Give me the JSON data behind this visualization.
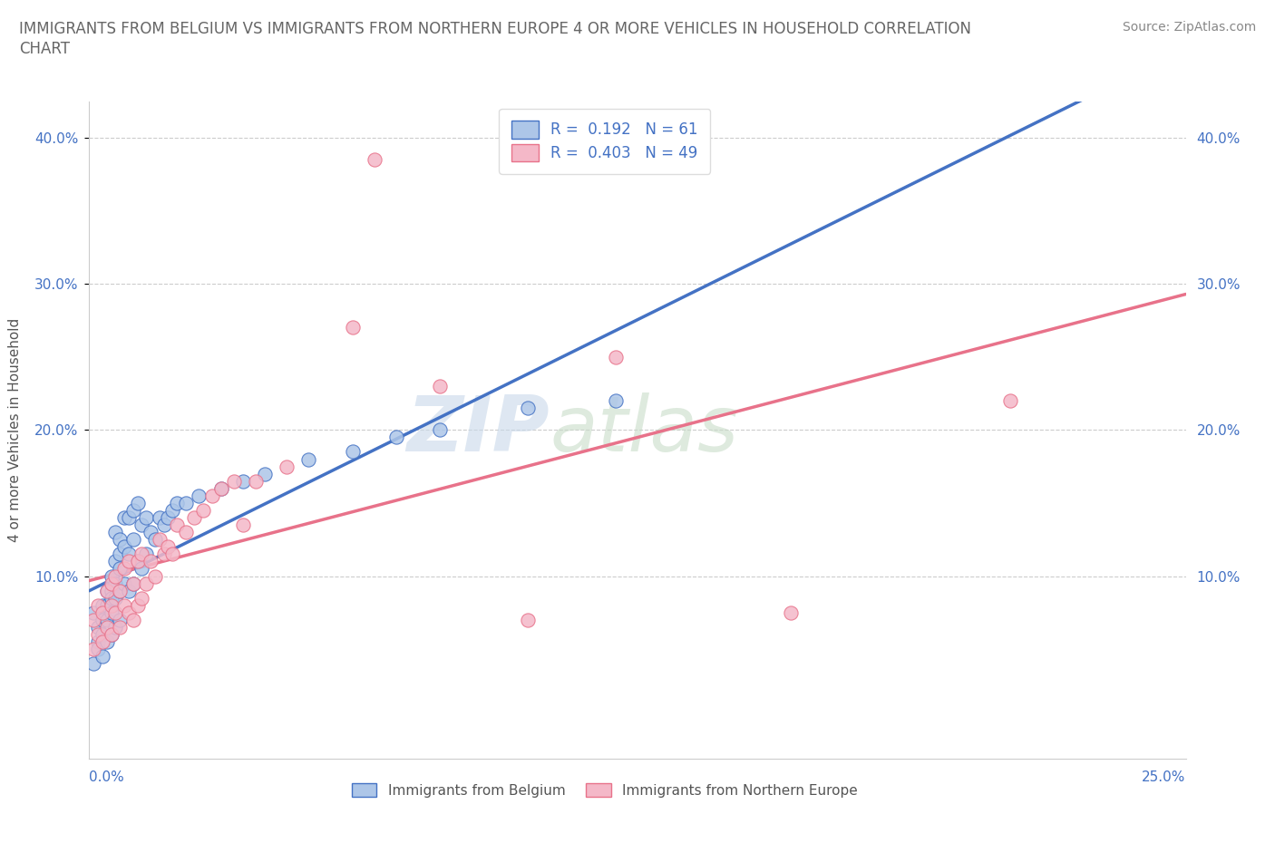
{
  "title_line1": "IMMIGRANTS FROM BELGIUM VS IMMIGRANTS FROM NORTHERN EUROPE 4 OR MORE VEHICLES IN HOUSEHOLD CORRELATION",
  "title_line2": "CHART",
  "source_text": "Source: ZipAtlas.com",
  "xlabel_bottom_left": "0.0%",
  "xlabel_bottom_right": "25.0%",
  "ylabel": "4 or more Vehicles in Household",
  "ytick_labels": [
    "10.0%",
    "20.0%",
    "30.0%",
    "40.0%"
  ],
  "ytick_positions": [
    0.1,
    0.2,
    0.3,
    0.4
  ],
  "xlim": [
    0.0,
    0.25
  ],
  "ylim": [
    -0.025,
    0.425
  ],
  "watermark_zip": "ZIP",
  "watermark_atlas": "atlas",
  "belgium_R": 0.192,
  "belgium_N": 61,
  "northern_europe_R": 0.403,
  "northern_europe_N": 49,
  "legend_label_belgium": "Immigrants from Belgium",
  "legend_label_northern": "Immigrants from Northern Europe",
  "belgium_color": "#adc6e8",
  "northern_europe_color": "#f4b8c8",
  "belgium_line_color": "#4472c4",
  "northern_europe_line_color": "#e8728a",
  "belgium_x": [
    0.001,
    0.001,
    0.002,
    0.002,
    0.002,
    0.003,
    0.003,
    0.003,
    0.003,
    0.004,
    0.004,
    0.004,
    0.004,
    0.005,
    0.005,
    0.005,
    0.005,
    0.005,
    0.006,
    0.006,
    0.006,
    0.006,
    0.006,
    0.007,
    0.007,
    0.007,
    0.007,
    0.007,
    0.008,
    0.008,
    0.008,
    0.009,
    0.009,
    0.009,
    0.01,
    0.01,
    0.01,
    0.011,
    0.011,
    0.012,
    0.012,
    0.013,
    0.013,
    0.014,
    0.015,
    0.016,
    0.017,
    0.018,
    0.019,
    0.02,
    0.022,
    0.025,
    0.03,
    0.035,
    0.04,
    0.05,
    0.06,
    0.07,
    0.08,
    0.1,
    0.12
  ],
  "belgium_y": [
    0.075,
    0.04,
    0.065,
    0.055,
    0.05,
    0.08,
    0.07,
    0.06,
    0.045,
    0.09,
    0.08,
    0.07,
    0.055,
    0.1,
    0.09,
    0.085,
    0.075,
    0.06,
    0.13,
    0.11,
    0.095,
    0.085,
    0.065,
    0.125,
    0.115,
    0.105,
    0.09,
    0.07,
    0.14,
    0.12,
    0.095,
    0.14,
    0.115,
    0.09,
    0.145,
    0.125,
    0.095,
    0.15,
    0.11,
    0.135,
    0.105,
    0.14,
    0.115,
    0.13,
    0.125,
    0.14,
    0.135,
    0.14,
    0.145,
    0.15,
    0.15,
    0.155,
    0.16,
    0.165,
    0.17,
    0.18,
    0.185,
    0.195,
    0.2,
    0.215,
    0.22
  ],
  "northern_x": [
    0.001,
    0.001,
    0.002,
    0.002,
    0.003,
    0.003,
    0.004,
    0.004,
    0.005,
    0.005,
    0.005,
    0.006,
    0.006,
    0.007,
    0.007,
    0.008,
    0.008,
    0.009,
    0.009,
    0.01,
    0.01,
    0.011,
    0.011,
    0.012,
    0.012,
    0.013,
    0.014,
    0.015,
    0.016,
    0.017,
    0.018,
    0.019,
    0.02,
    0.022,
    0.024,
    0.026,
    0.028,
    0.03,
    0.033,
    0.035,
    0.038,
    0.045,
    0.06,
    0.065,
    0.08,
    0.1,
    0.12,
    0.16,
    0.21
  ],
  "northern_y": [
    0.07,
    0.05,
    0.08,
    0.06,
    0.075,
    0.055,
    0.09,
    0.065,
    0.095,
    0.08,
    0.06,
    0.1,
    0.075,
    0.09,
    0.065,
    0.105,
    0.08,
    0.11,
    0.075,
    0.095,
    0.07,
    0.11,
    0.08,
    0.115,
    0.085,
    0.095,
    0.11,
    0.1,
    0.125,
    0.115,
    0.12,
    0.115,
    0.135,
    0.13,
    0.14,
    0.145,
    0.155,
    0.16,
    0.165,
    0.135,
    0.165,
    0.175,
    0.27,
    0.385,
    0.23,
    0.07,
    0.25,
    0.075,
    0.22
  ],
  "trendline_x_start": 0.0,
  "trendline_x_end_bel": 0.25,
  "trendline_x_end_nor": 0.25
}
